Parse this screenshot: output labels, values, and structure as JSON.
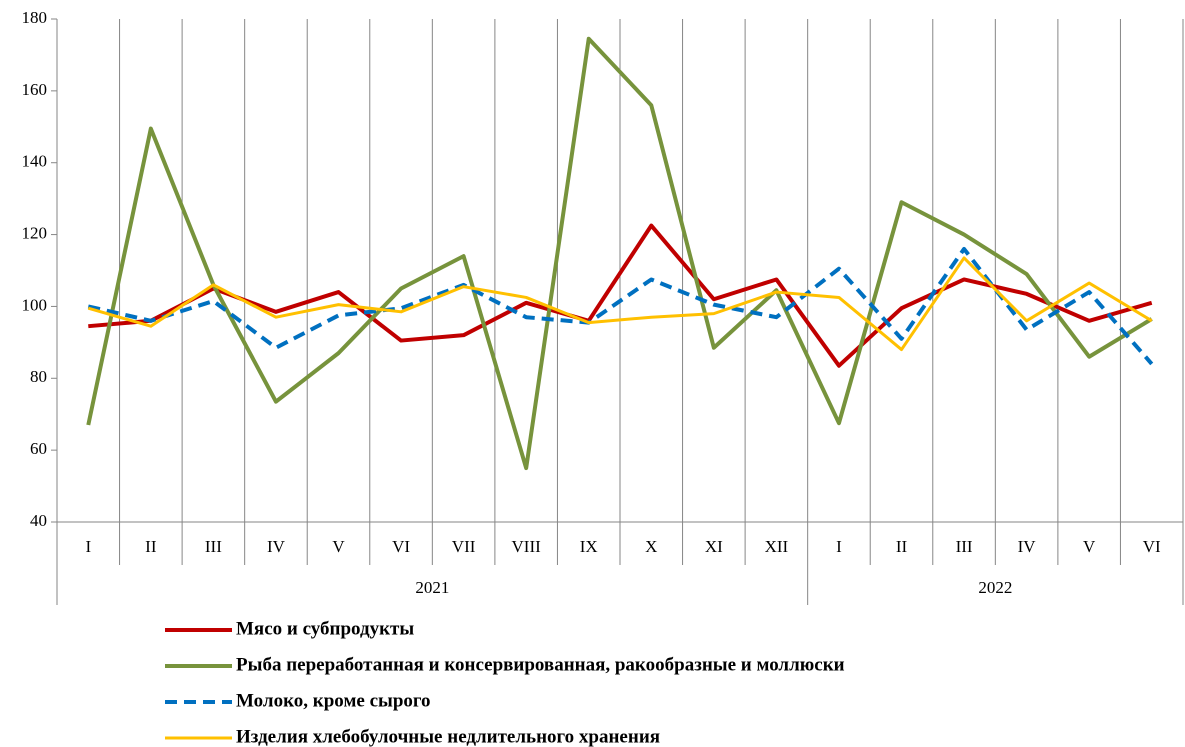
{
  "chart_data": {
    "type": "line",
    "categories": [
      "I",
      "II",
      "III",
      "IV",
      "V",
      "VI",
      "VII",
      "VIII",
      "IX",
      "X",
      "XI",
      "XII",
      "I",
      "II",
      "III",
      "IV",
      "V",
      "VI"
    ],
    "x_groups": [
      {
        "label": "2021",
        "span": 12
      },
      {
        "label": "2022",
        "span": 6
      }
    ],
    "series": [
      {
        "name": "Мясо и субпродукты",
        "color": "#c00000",
        "dashed": false,
        "values": [
          94.5,
          96,
          105,
          98.5,
          104,
          90.5,
          92,
          101,
          96,
          122.5,
          102,
          107.5,
          83.5,
          99.5,
          107.5,
          103.5,
          96,
          101
        ]
      },
      {
        "name": "Рыба переработанная и консервированная, ракообразные и моллюски",
        "color": "#77933c",
        "dashed": false,
        "values": [
          67,
          149.5,
          106,
          73.5,
          87,
          105,
          114,
          55,
          174.5,
          156,
          88.5,
          104.5,
          67.5,
          129,
          120,
          109,
          86,
          96.5
        ]
      },
      {
        "name": "Молоко, кроме сырого",
        "color": "#0070c0",
        "dashed": true,
        "values": [
          100,
          96,
          101.5,
          88.5,
          97.5,
          99.5,
          106,
          97,
          95.5,
          107.5,
          100.5,
          97,
          110.5,
          91,
          116,
          93.5,
          104,
          84
        ]
      },
      {
        "name": "Изделия хлебобулочные недлительного хранения",
        "color": "#ffc000",
        "dashed": false,
        "values": [
          99.5,
          94.5,
          106,
          97,
          100.5,
          98.5,
          105.5,
          102.5,
          95.5,
          97,
          98,
          104,
          102.5,
          88,
          113.5,
          96,
          106.5,
          96
        ]
      }
    ],
    "ylim": [
      40,
      180
    ],
    "yticks": [
      40,
      60,
      80,
      100,
      120,
      140,
      160,
      180
    ],
    "grid": "vertical"
  }
}
